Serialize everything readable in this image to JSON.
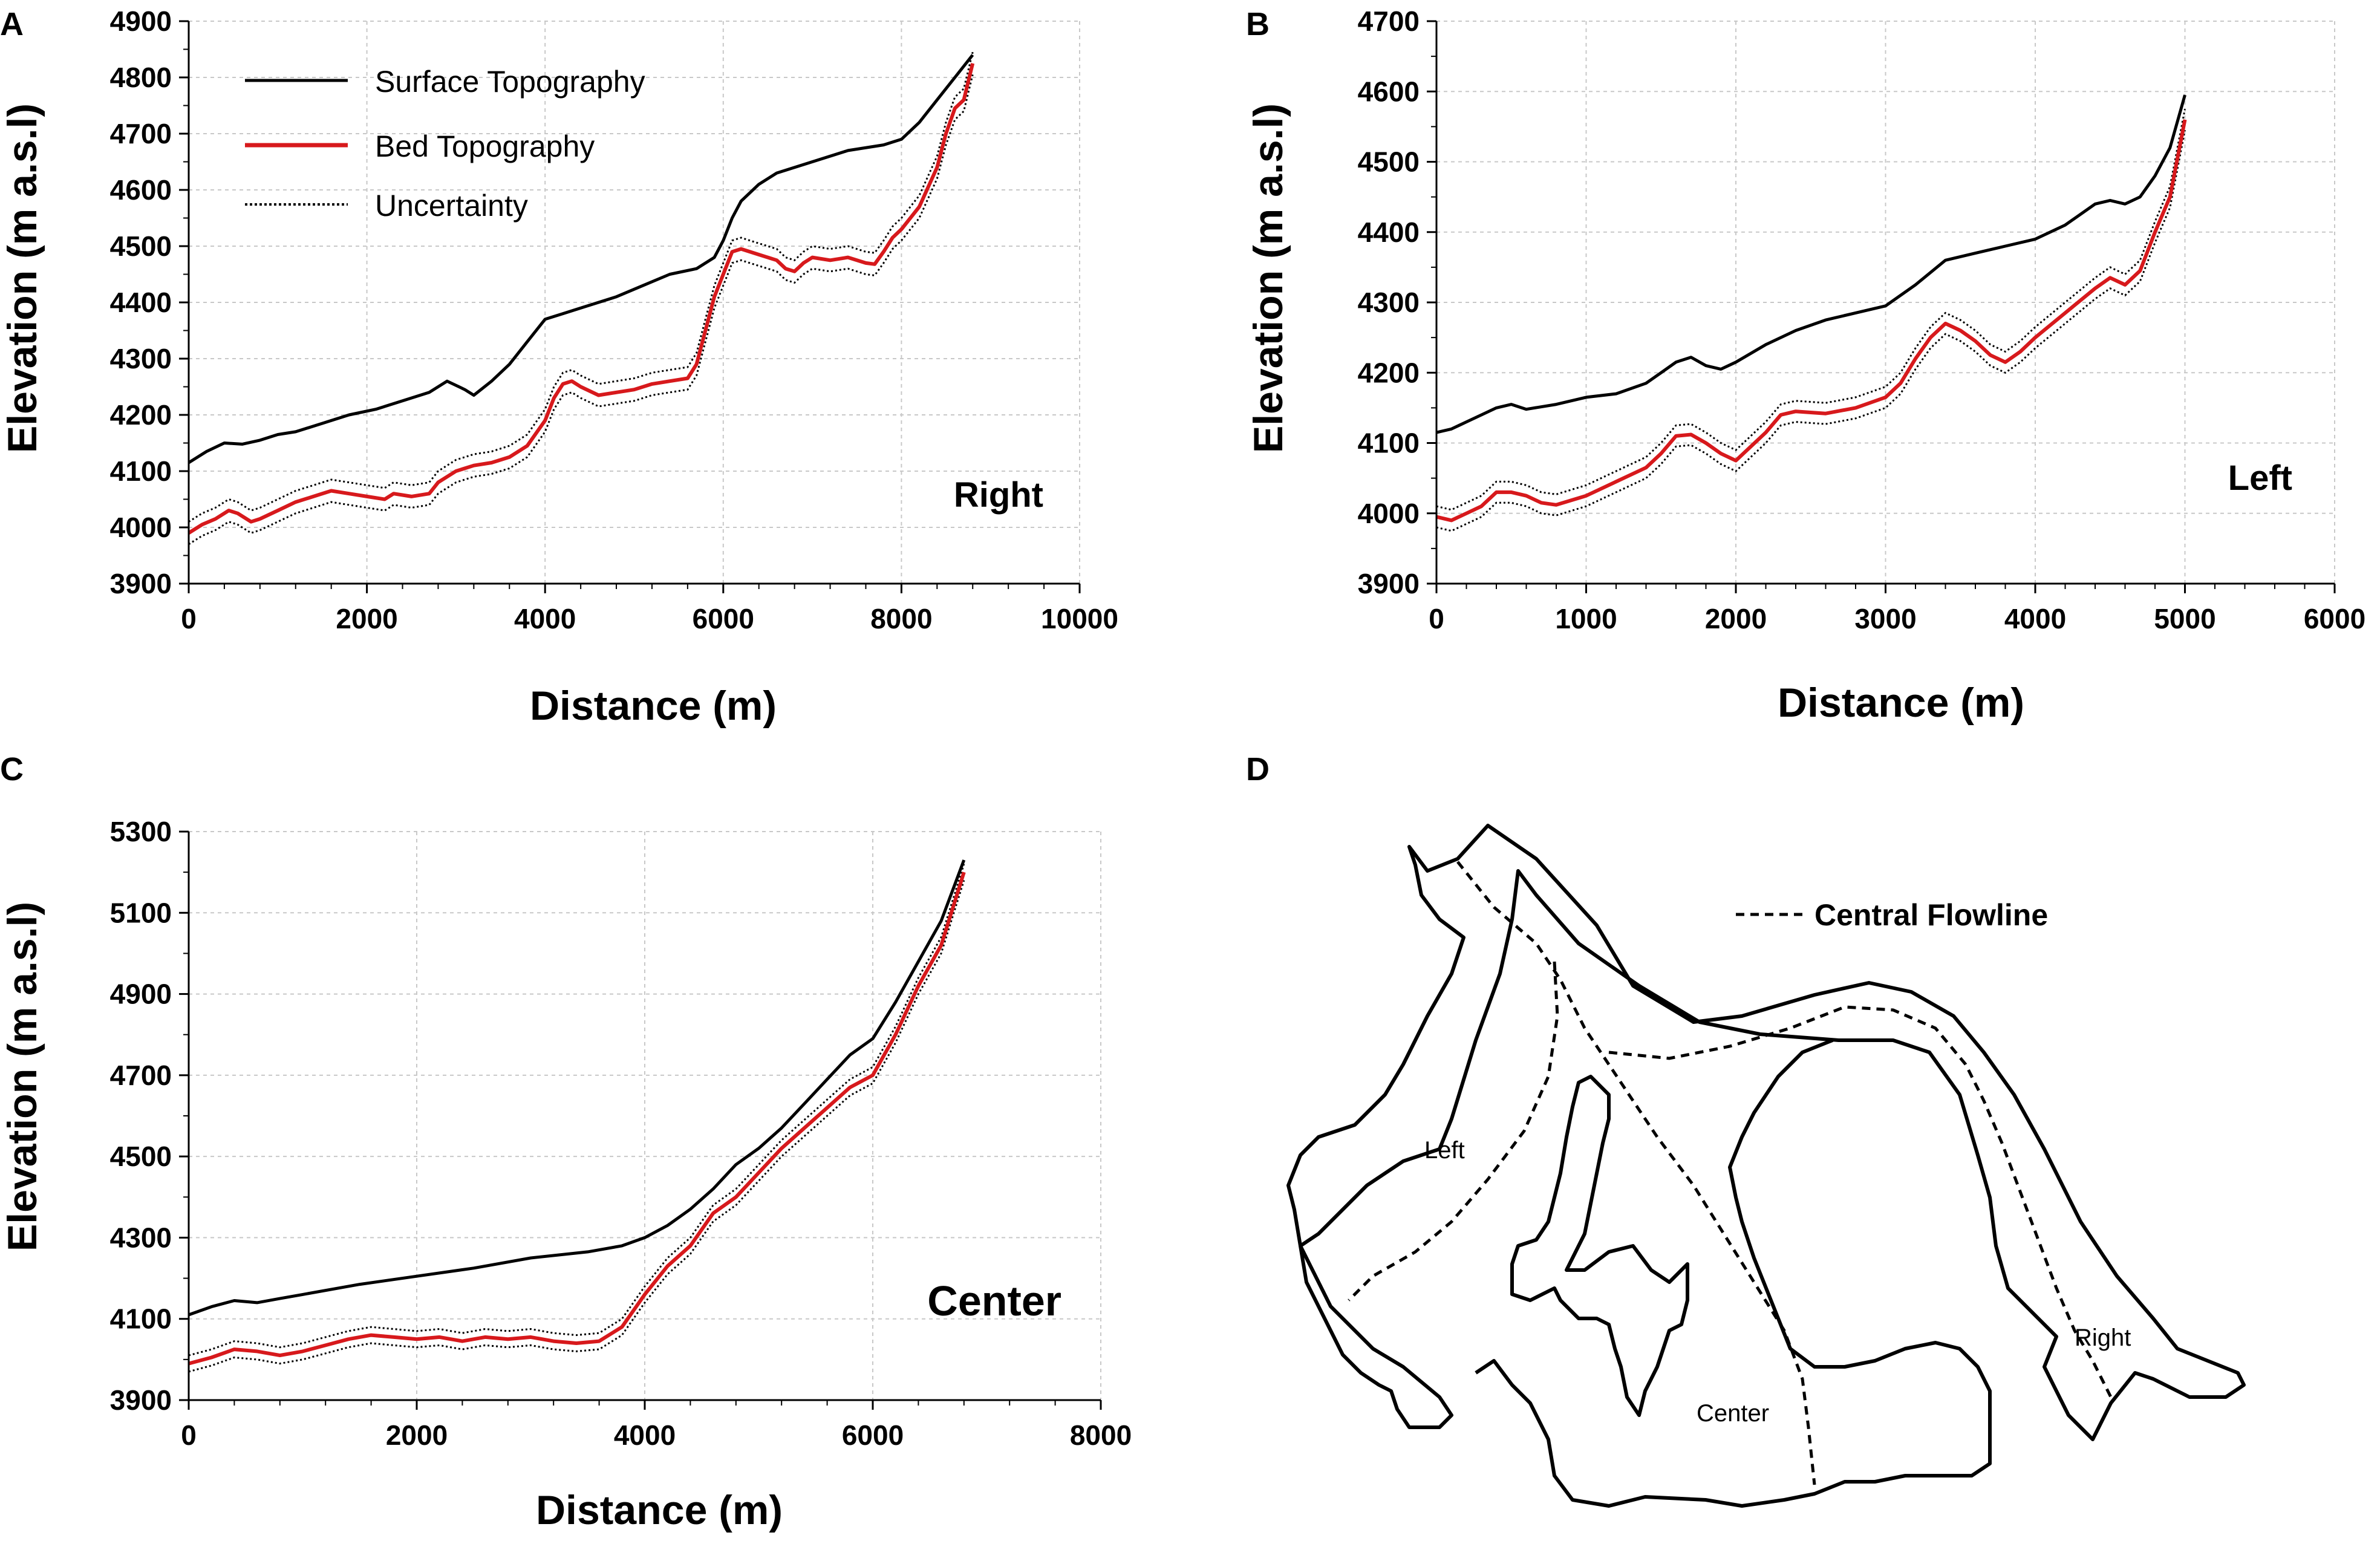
{
  "colors": {
    "surface": "#000000",
    "bed": "#d7191c",
    "uncertainty": "#000000",
    "grid": "#c8c8c8",
    "outline": "#000000"
  },
  "legend": {
    "surface_label": "Surface Topography",
    "bed_label": "Bed Topography",
    "uncertainty_label": "Uncertainty"
  },
  "chart_data": [
    {
      "panel": "A",
      "type": "line",
      "label": "Right",
      "xlabel": "Distance (m)",
      "ylabel": "Elevation (m a.s.l)",
      "xlim": [
        0,
        10000
      ],
      "ylim": [
        3900,
        4900
      ],
      "xticks": [
        0,
        2000,
        4000,
        6000,
        8000,
        10000
      ],
      "yticks": [
        3900,
        4000,
        4100,
        4200,
        4300,
        4400,
        4500,
        4600,
        4700,
        4800,
        4900
      ],
      "uncertainty": 20,
      "series": [
        {
          "name": "Surface Topography",
          "x": [
            0,
            200,
            400,
            600,
            800,
            1000,
            1200,
            1500,
            1800,
            2100,
            2400,
            2700,
            2900,
            3100,
            3200,
            3400,
            3600,
            3800,
            4000,
            4200,
            4500,
            4800,
            5100,
            5400,
            5700,
            5900,
            6000,
            6100,
            6200,
            6400,
            6600,
            7000,
            7400,
            7800,
            8000,
            8200,
            8400,
            8600,
            8800
          ],
          "y": [
            4115,
            4135,
            4150,
            4148,
            4155,
            4165,
            4170,
            4185,
            4200,
            4210,
            4225,
            4240,
            4260,
            4245,
            4235,
            4260,
            4290,
            4330,
            4370,
            4380,
            4395,
            4410,
            4430,
            4450,
            4460,
            4480,
            4510,
            4550,
            4580,
            4610,
            4630,
            4650,
            4670,
            4680,
            4690,
            4720,
            4760,
            4800,
            4840
          ]
        },
        {
          "name": "Bed Topography",
          "x": [
            0,
            150,
            300,
            450,
            550,
            700,
            800,
            1000,
            1200,
            1400,
            1600,
            1800,
            2000,
            2200,
            2300,
            2500,
            2700,
            2800,
            3000,
            3200,
            3400,
            3600,
            3800,
            4000,
            4100,
            4200,
            4300,
            4400,
            4600,
            4800,
            5000,
            5200,
            5400,
            5600,
            5700,
            5800,
            5900,
            6000,
            6100,
            6200,
            6400,
            6600,
            6700,
            6800,
            6900,
            7000,
            7200,
            7400,
            7600,
            7700,
            7800,
            7900,
            8000,
            8200,
            8400,
            8500,
            8600,
            8700,
            8800
          ],
          "y": [
            3990,
            4005,
            4015,
            4030,
            4025,
            4010,
            4015,
            4030,
            4045,
            4055,
            4065,
            4060,
            4055,
            4050,
            4060,
            4055,
            4060,
            4080,
            4100,
            4110,
            4115,
            4125,
            4145,
            4190,
            4230,
            4255,
            4260,
            4250,
            4235,
            4240,
            4245,
            4255,
            4260,
            4265,
            4290,
            4350,
            4410,
            4450,
            4490,
            4495,
            4485,
            4475,
            4460,
            4455,
            4470,
            4480,
            4475,
            4480,
            4470,
            4468,
            4490,
            4515,
            4530,
            4570,
            4640,
            4700,
            4745,
            4760,
            4825
          ]
        }
      ]
    },
    {
      "panel": "B",
      "type": "line",
      "label": "Left",
      "xlabel": "Distance (m)",
      "ylabel": "Elevation (m a.s.l)",
      "xlim": [
        0,
        6000
      ],
      "ylim": [
        3900,
        4700
      ],
      "xticks": [
        0,
        1000,
        2000,
        3000,
        4000,
        5000,
        6000
      ],
      "yticks": [
        3900,
        4000,
        4100,
        4200,
        4300,
        4400,
        4500,
        4600,
        4700
      ],
      "uncertainty": 15,
      "series": [
        {
          "name": "Surface Topography",
          "x": [
            0,
            100,
            200,
            300,
            400,
            500,
            600,
            800,
            1000,
            1200,
            1400,
            1500,
            1600,
            1700,
            1800,
            1900,
            2000,
            2200,
            2400,
            2600,
            2800,
            3000,
            3200,
            3400,
            3600,
            3800,
            4000,
            4200,
            4400,
            4500,
            4600,
            4700,
            4800,
            4900,
            5000
          ],
          "y": [
            4115,
            4120,
            4130,
            4140,
            4150,
            4155,
            4148,
            4155,
            4165,
            4170,
            4185,
            4200,
            4215,
            4222,
            4210,
            4205,
            4215,
            4240,
            4260,
            4275,
            4285,
            4295,
            4325,
            4360,
            4370,
            4380,
            4390,
            4410,
            4440,
            4445,
            4440,
            4450,
            4480,
            4520,
            4595
          ]
        },
        {
          "name": "Bed Topography",
          "x": [
            0,
            100,
            200,
            300,
            400,
            500,
            600,
            700,
            800,
            1000,
            1200,
            1400,
            1500,
            1600,
            1700,
            1800,
            1900,
            2000,
            2200,
            2300,
            2400,
            2600,
            2800,
            3000,
            3100,
            3200,
            3300,
            3400,
            3500,
            3600,
            3700,
            3800,
            3900,
            4000,
            4200,
            4400,
            4500,
            4600,
            4700,
            4800,
            4900,
            5000
          ],
          "y": [
            3995,
            3990,
            4000,
            4010,
            4030,
            4030,
            4025,
            4015,
            4012,
            4025,
            4045,
            4065,
            4085,
            4110,
            4112,
            4100,
            4085,
            4075,
            4115,
            4140,
            4145,
            4142,
            4150,
            4165,
            4185,
            4220,
            4250,
            4270,
            4260,
            4245,
            4225,
            4215,
            4230,
            4250,
            4285,
            4320,
            4335,
            4325,
            4345,
            4400,
            4450,
            4560
          ]
        }
      ]
    },
    {
      "panel": "C",
      "type": "line",
      "label": "Center",
      "xlabel": "Distance (m)",
      "ylabel": "Elevation (m a.s.l)",
      "xlim": [
        0,
        8000
      ],
      "ylim": [
        3900,
        5300
      ],
      "xticks": [
        0,
        2000,
        4000,
        6000,
        8000
      ],
      "yticks": [
        3900,
        4100,
        4300,
        4500,
        4700,
        4900,
        5100,
        5300
      ],
      "uncertainty": 20,
      "series": [
        {
          "name": "Surface Topography",
          "x": [
            0,
            200,
            400,
            600,
            800,
            1000,
            1500,
            2000,
            2500,
            3000,
            3500,
            3800,
            4000,
            4200,
            4400,
            4600,
            4800,
            5000,
            5200,
            5400,
            5600,
            5800,
            6000,
            6200,
            6400,
            6600,
            6800
          ],
          "y": [
            4110,
            4130,
            4145,
            4140,
            4150,
            4160,
            4185,
            4205,
            4225,
            4250,
            4265,
            4280,
            4300,
            4330,
            4370,
            4420,
            4480,
            4520,
            4570,
            4630,
            4690,
            4750,
            4790,
            4880,
            4980,
            5080,
            5230
          ]
        },
        {
          "name": "Bed Topography",
          "x": [
            0,
            200,
            400,
            600,
            800,
            1000,
            1200,
            1400,
            1600,
            1800,
            2000,
            2200,
            2400,
            2600,
            2800,
            3000,
            3200,
            3400,
            3600,
            3800,
            4000,
            4200,
            4400,
            4600,
            4800,
            5000,
            5200,
            5400,
            5600,
            5800,
            6000,
            6200,
            6400,
            6600,
            6800
          ],
          "y": [
            3990,
            4005,
            4025,
            4020,
            4010,
            4020,
            4035,
            4050,
            4060,
            4055,
            4050,
            4055,
            4045,
            4055,
            4050,
            4055,
            4045,
            4040,
            4045,
            4080,
            4160,
            4230,
            4280,
            4360,
            4400,
            4460,
            4520,
            4570,
            4620,
            4670,
            4700,
            4800,
            4920,
            5020,
            5200
          ]
        }
      ]
    }
  ],
  "map": {
    "panel": "D",
    "legend_label": "Central Flowline",
    "labels": {
      "left": "Left",
      "center": "Center",
      "right": "Right"
    }
  }
}
